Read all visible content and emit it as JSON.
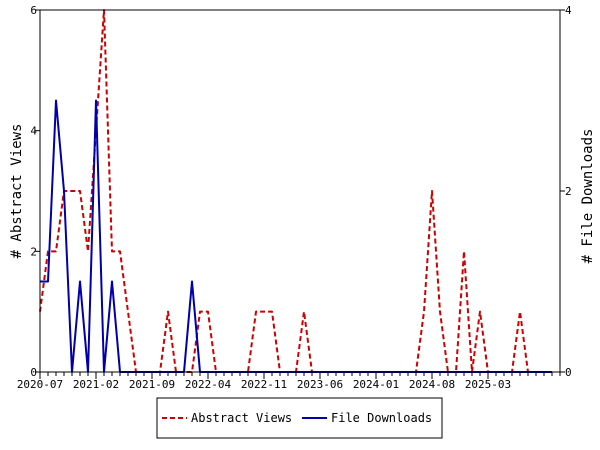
{
  "chart_data": {
    "type": "line",
    "x_tick_labels": [
      "2020-07",
      "2021-02",
      "2021-09",
      "2022-04",
      "2022-11",
      "2023-06",
      "2024-01",
      "2024-08",
      "2025-03"
    ],
    "x": [
      "2020-07",
      "2020-08",
      "2020-09",
      "2020-10",
      "2020-11",
      "2020-12",
      "2021-01",
      "2021-02",
      "2021-03",
      "2021-04",
      "2021-05",
      "2021-06",
      "2021-07",
      "2021-08",
      "2021-09",
      "2021-10",
      "2021-11",
      "2021-12",
      "2022-01",
      "2022-02",
      "2022-03",
      "2022-04",
      "2022-05",
      "2022-06",
      "2022-07",
      "2022-08",
      "2022-09",
      "2022-10",
      "2022-11",
      "2022-12",
      "2023-01",
      "2023-02",
      "2023-03",
      "2023-04",
      "2023-05",
      "2023-06",
      "2023-07",
      "2023-08",
      "2023-09",
      "2023-10",
      "2023-11",
      "2023-12",
      "2024-01",
      "2024-02",
      "2024-03",
      "2024-04",
      "2024-05",
      "2024-06",
      "2024-07",
      "2024-08",
      "2024-09",
      "2024-10",
      "2024-11",
      "2024-12",
      "2025-01",
      "2025-02",
      "2025-03",
      "2025-04",
      "2025-05",
      "2025-06",
      "2025-07",
      "2025-08",
      "2025-09",
      "2025-10",
      "2025-11"
    ],
    "series": [
      {
        "name": "Abstract Views",
        "axis": "left",
        "color": "#cc0000",
        "style": "dashed",
        "values": [
          1,
          2,
          2,
          3,
          3,
          3,
          2,
          4,
          6,
          2,
          2,
          1,
          0,
          0,
          0,
          0,
          1,
          0,
          0,
          0,
          1,
          1,
          0,
          0,
          0,
          0,
          0,
          1,
          1,
          1,
          0,
          0,
          0,
          1,
          0,
          0,
          0,
          0,
          0,
          0,
          0,
          0,
          0,
          0,
          0,
          0,
          0,
          0,
          1,
          3,
          1,
          0,
          0,
          2,
          0,
          1,
          0,
          0,
          0,
          0,
          1,
          0,
          0,
          0,
          0
        ]
      },
      {
        "name": "File Downloads",
        "axis": "right",
        "color": "#0000aa",
        "style": "solid",
        "values": [
          1,
          1,
          3,
          2,
          0,
          1,
          0,
          3,
          0,
          1,
          0,
          0,
          0,
          0,
          0,
          0,
          0,
          0,
          0,
          1,
          0,
          0,
          0,
          0,
          0,
          0,
          0,
          0,
          0,
          0,
          0,
          0,
          0,
          0,
          0,
          0,
          0,
          0,
          0,
          0,
          0,
          0,
          0,
          0,
          0,
          0,
          0,
          0,
          0,
          0,
          0,
          0,
          0,
          0,
          0,
          0,
          0,
          0,
          0,
          0,
          0,
          0,
          0,
          0,
          0
        ]
      }
    ],
    "ylabel": "# Abstract Views",
    "y2label": "# File Downloads",
    "ylim": [
      0,
      6
    ],
    "y2lim": [
      0,
      4
    ],
    "y_ticks": [
      0,
      2,
      4,
      6
    ],
    "y2_ticks": [
      0,
      2,
      4
    ],
    "legend_position": "bottom"
  }
}
